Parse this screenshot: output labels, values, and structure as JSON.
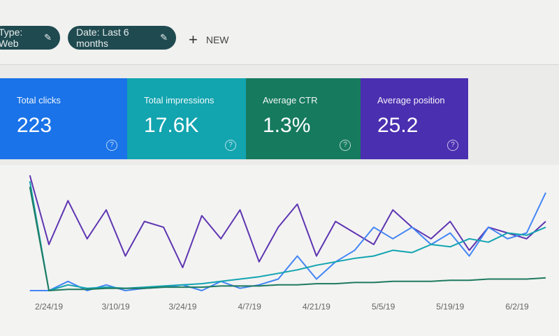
{
  "filters": [
    {
      "label": "Type: Web",
      "icon": "pencil-icon"
    },
    {
      "label": "Date: Last 6 months",
      "icon": "pencil-icon"
    }
  ],
  "new_button": {
    "label": "NEW",
    "icon": "plus-icon"
  },
  "metrics": [
    {
      "label": "Total clicks",
      "value": "223",
      "color": "#1a73e8"
    },
    {
      "label": "Total impressions",
      "value": "17.6K",
      "color": "#12a4af"
    },
    {
      "label": "Average CTR",
      "value": "1.3%",
      "color": "#167a5e"
    },
    {
      "label": "Average position",
      "value": "25.2",
      "color": "#4a2fb0"
    }
  ],
  "chart_data": {
    "type": "line",
    "x": [
      "2/20/19",
      "2/24/19",
      "2/28/19",
      "3/4/19",
      "3/8/19",
      "3/12/19",
      "3/16/19",
      "3/20/19",
      "3/24/19",
      "3/28/19",
      "4/1/19",
      "4/5/19",
      "4/9/19",
      "4/13/19",
      "4/17/19",
      "4/21/19",
      "4/25/19",
      "4/29/19",
      "5/3/19",
      "5/7/19",
      "5/11/19",
      "5/15/19",
      "5/19/19",
      "5/23/19",
      "5/27/19",
      "5/31/19",
      "6/4/19",
      "6/8/19"
    ],
    "xticks": [
      "2/24/19",
      "3/10/19",
      "3/24/19",
      "4/7/19",
      "4/21/19",
      "5/5/19",
      "5/19/19",
      "6/2/19"
    ],
    "grid": false,
    "series": [
      {
        "color": "#5e35b1",
        "values": [
          100,
          40,
          78,
          45,
          70,
          30,
          60,
          55,
          20,
          65,
          45,
          70,
          25,
          55,
          75,
          30,
          60,
          50,
          40,
          70,
          55,
          45,
          60,
          35,
          55,
          50,
          45,
          60
        ]
      },
      {
        "color": "#4285f4",
        "values": [
          0,
          0,
          8,
          0,
          5,
          0,
          2,
          3,
          5,
          0,
          8,
          2,
          5,
          10,
          30,
          10,
          25,
          35,
          55,
          45,
          55,
          40,
          50,
          30,
          55,
          45,
          50,
          85
        ]
      },
      {
        "color": "#12a4b0",
        "values": [
          95,
          0,
          5,
          2,
          3,
          2,
          3,
          4,
          5,
          6,
          8,
          10,
          12,
          15,
          18,
          22,
          25,
          28,
          30,
          35,
          33,
          40,
          38,
          45,
          42,
          50,
          48,
          55
        ]
      },
      {
        "color": "#1e7a5f",
        "values": [
          90,
          0,
          1,
          1,
          2,
          2,
          2,
          3,
          3,
          3,
          4,
          4,
          4,
          5,
          5,
          6,
          6,
          7,
          7,
          8,
          8,
          8,
          9,
          9,
          10,
          10,
          10,
          11
        ]
      }
    ]
  }
}
